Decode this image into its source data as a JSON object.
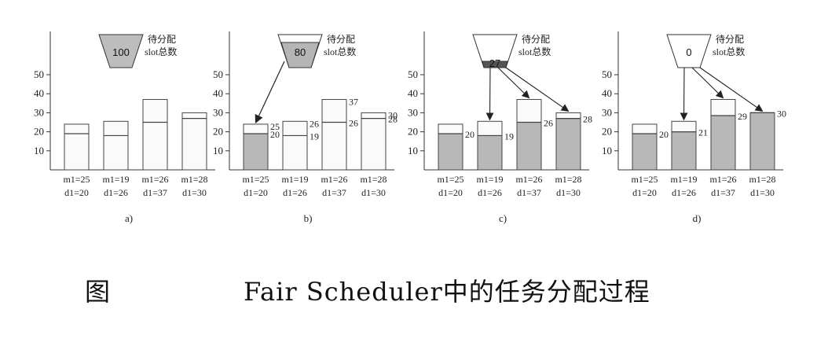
{
  "caption": {
    "prefix": "图",
    "title": "Fair Scheduler中的任务分配过程"
  },
  "funnel_label": [
    "待分配",
    "slot总数"
  ],
  "y_ticks": [
    10,
    20,
    30,
    40,
    50
  ],
  "panels": [
    {
      "id": "a",
      "label": "a)",
      "funnel_value": "100",
      "jobs": [
        {
          "m": "m1=25",
          "d": "d1=20",
          "allocated": 0,
          "m_val": 19,
          "d_val": 24,
          "mark_alloc": null,
          "mark_top": null
        },
        {
          "m": "m1=19",
          "d": "d1=26",
          "allocated": 0,
          "m_val": 18,
          "d_val": 25.5,
          "mark_alloc": null,
          "mark_top": null
        },
        {
          "m": "m1=26",
          "d": "d1=37",
          "allocated": 0,
          "m_val": 25,
          "d_val": 37,
          "mark_alloc": null,
          "mark_top": null
        },
        {
          "m": "m1=28",
          "d": "d1=30",
          "allocated": 0,
          "m_val": 27,
          "d_val": 30,
          "mark_alloc": null,
          "mark_top": null
        }
      ]
    },
    {
      "id": "b",
      "label": "b)",
      "funnel_value": "80",
      "jobs": [
        {
          "m": "m1=25",
          "d": "d1=20",
          "allocated": 19,
          "m_val": 19,
          "d_val": 24,
          "mark_alloc": "20",
          "mark_top": "25"
        },
        {
          "m": "m1=19",
          "d": "d1=26",
          "allocated": 0,
          "m_val": 18,
          "d_val": 25.5,
          "mark_alloc": "19",
          "mark_top": "26"
        },
        {
          "m": "m1=26",
          "d": "d1=37",
          "allocated": 0,
          "m_val": 25,
          "d_val": 37,
          "mark_alloc": "26",
          "mark_top": "37"
        },
        {
          "m": "m1=28",
          "d": "d1=30",
          "allocated": 0,
          "m_val": 27,
          "d_val": 30,
          "mark_alloc": "28",
          "mark_top": "30"
        }
      ]
    },
    {
      "id": "c",
      "label": "c)",
      "funnel_value": "27",
      "jobs": [
        {
          "m": "m1=25",
          "d": "d1=20",
          "allocated": 19,
          "m_val": 19,
          "d_val": 24,
          "mark_alloc": "20",
          "mark_top": null
        },
        {
          "m": "m1=19",
          "d": "d1=26",
          "allocated": 18,
          "m_val": 18,
          "d_val": 25.5,
          "mark_alloc": "19",
          "mark_top": null
        },
        {
          "m": "m1=26",
          "d": "d1=37",
          "allocated": 25,
          "m_val": 25,
          "d_val": 37,
          "mark_alloc": "26",
          "mark_top": null
        },
        {
          "m": "m1=28",
          "d": "d1=30",
          "allocated": 27,
          "m_val": 27,
          "d_val": 30,
          "mark_alloc": "28",
          "mark_top": null
        }
      ]
    },
    {
      "id": "d",
      "label": "d)",
      "funnel_value": "0",
      "jobs": [
        {
          "m": "m1=25",
          "d": "d1=20",
          "allocated": 19,
          "m_val": 19,
          "d_val": 24,
          "mark_alloc": "20",
          "mark_top": null
        },
        {
          "m": "m1=19",
          "d": "d1=26",
          "allocated": 20,
          "m_val": 20,
          "d_val": 25.5,
          "mark_alloc": "21",
          "mark_top": null
        },
        {
          "m": "m1=26",
          "d": "d1=37",
          "allocated": 28.5,
          "m_val": 28.5,
          "d_val": 37,
          "mark_alloc": "29",
          "mark_top": null
        },
        {
          "m": "m1=28",
          "d": "d1=30",
          "allocated": 30,
          "m_val": 30,
          "d_val": 30,
          "mark_alloc": "30",
          "mark_top": null
        }
      ]
    }
  ]
}
